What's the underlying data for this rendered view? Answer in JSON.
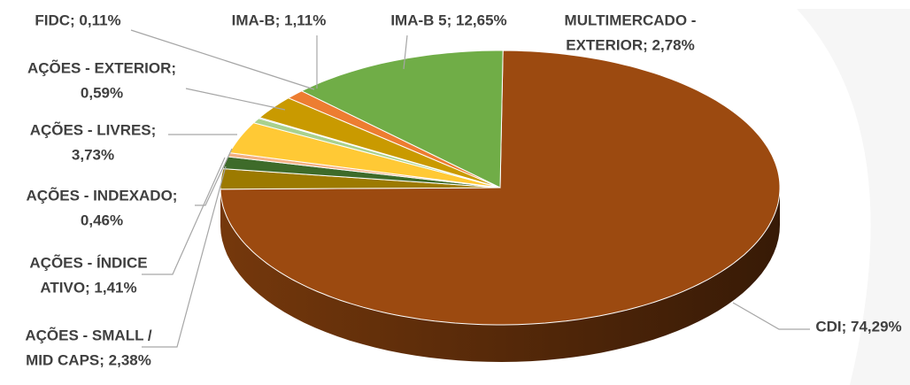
{
  "chart_data": {
    "type": "pie",
    "values": [
      74.29,
      2.38,
      1.41,
      0.46,
      3.73,
      0.59,
      0.11,
      2.78,
      1.11,
      12.65
    ],
    "value_labels": [
      [
        "CDI; 74,29%"
      ],
      [
        "AÇÕES - SMALL /",
        "MID CAPS; 2,38%"
      ],
      [
        "AÇÕES - ÍNDICE",
        "ATIVO; 1,41%"
      ],
      [
        "AÇÕES - INDEXADO;",
        "0,46%"
      ],
      [
        "AÇÕES - LIVRES;",
        "3,73%"
      ],
      [
        "AÇÕES - EXTERIOR;",
        "0,59%"
      ],
      [
        "FIDC; 0,11%"
      ],
      [
        "MULTIMERCADO -",
        "EXTERIOR; 2,78%"
      ],
      [
        "IMA-B; 1,11%"
      ],
      [
        "IMA-B 5; 12,65%"
      ]
    ],
    "colors": [
      "#9C4A10",
      "#9C7A00",
      "#3E6B2A",
      "#F4B183",
      "#FFC935",
      "#A9D18E",
      "#5B9BD5",
      "#C99A00",
      "#ED7D31",
      "#70AD47"
    ]
  }
}
